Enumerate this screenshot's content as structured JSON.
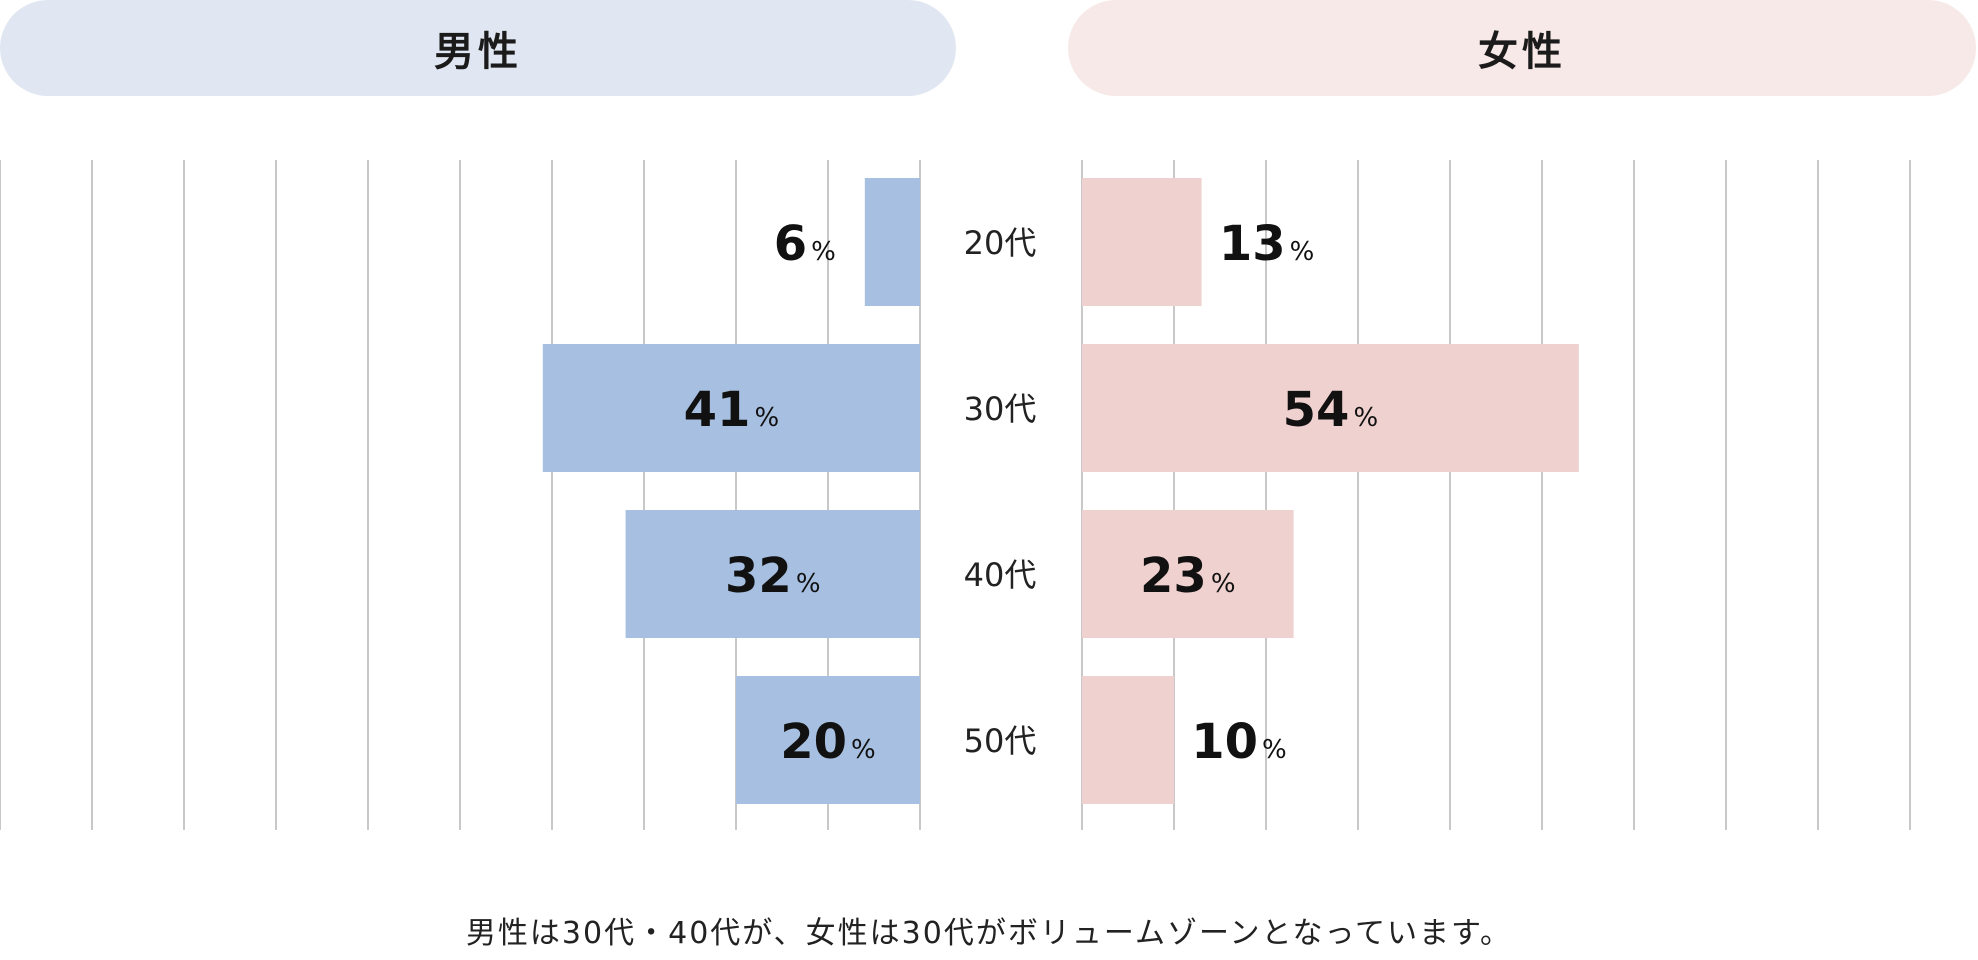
{
  "header": {
    "male_label": "男性",
    "female_label": "女性"
  },
  "colors": {
    "male_bar": "#a7bfe0",
    "female_bar": "#efd1cf",
    "gridline": "#c8c8c8"
  },
  "chart_data": {
    "type": "bar",
    "orientation": "horizontal",
    "layout": "population-pyramid",
    "categories": [
      "20代",
      "30代",
      "40代",
      "50代"
    ],
    "series": [
      {
        "name": "男性",
        "values": [
          6,
          41,
          32,
          20
        ]
      },
      {
        "name": "女性",
        "values": [
          13,
          54,
          23,
          10
        ]
      }
    ],
    "value_suffix": "%",
    "xlim": [
      0,
      100
    ],
    "grid": true,
    "title": "",
    "xlabel": "",
    "ylabel": ""
  },
  "caption": "男性は30代・40代が、女性は30代がボリュームゾーンとなっています。"
}
